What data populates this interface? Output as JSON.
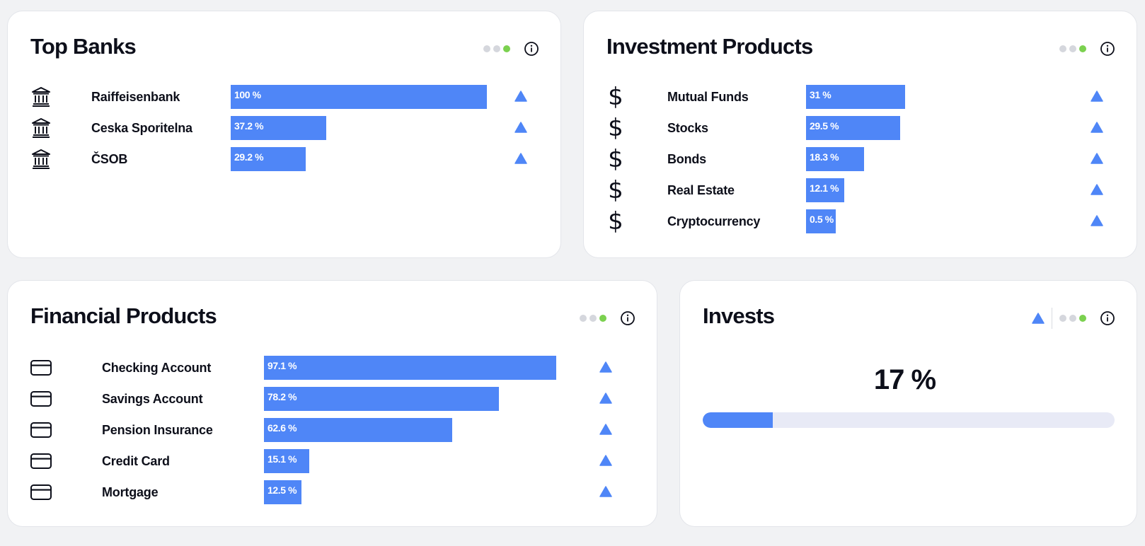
{
  "colors": {
    "bar": "#4f86f7",
    "accent_dot": "#7bd14f",
    "trend_up": "#4f86f7"
  },
  "top_banks": {
    "title": "Top Banks",
    "icon": "bank-icon",
    "rows": [
      {
        "label": "Raiffeisenbank",
        "percent": 100,
        "value_label": "100 %",
        "trend": "up"
      },
      {
        "label": "Ceska Sporitelna",
        "percent": 37.2,
        "value_label": "37.2 %",
        "trend": "up"
      },
      {
        "label": "ČSOB",
        "percent": 29.2,
        "value_label": "29.2 %",
        "trend": "up"
      }
    ]
  },
  "investment_products": {
    "title": "Investment Products",
    "icon": "dollar-icon",
    "icon_glyph": "$",
    "rows": [
      {
        "label": "Mutual Funds",
        "percent": 31,
        "value_label": "31 %",
        "trend": "up"
      },
      {
        "label": "Stocks",
        "percent": 29.5,
        "value_label": "29.5 %",
        "trend": "up"
      },
      {
        "label": "Bonds",
        "percent": 18.3,
        "value_label": "18.3 %",
        "trend": "up"
      },
      {
        "label": "Real Estate",
        "percent": 12.1,
        "value_label": "12.1 %",
        "trend": "up"
      },
      {
        "label": "Cryptocurrency",
        "percent": 0.5,
        "value_label": "0.5 %",
        "trend": "up"
      }
    ]
  },
  "financial_products": {
    "title": "Financial Products",
    "icon": "credit-card-icon",
    "rows": [
      {
        "label": "Checking Account",
        "percent": 97.1,
        "value_label": "97.1 %",
        "trend": "up"
      },
      {
        "label": "Savings Account",
        "percent": 78.2,
        "value_label": "78.2 %",
        "trend": "up"
      },
      {
        "label": "Pension Insurance",
        "percent": 62.6,
        "value_label": "62.6 %",
        "trend": "up"
      },
      {
        "label": "Credit Card",
        "percent": 15.1,
        "value_label": "15.1 %",
        "trend": "up"
      },
      {
        "label": "Mortgage",
        "percent": 12.5,
        "value_label": "12.5 %",
        "trend": "up"
      }
    ]
  },
  "invests": {
    "title": "Invests",
    "value_label": "17 %",
    "progress_percent": 17,
    "trend": "up"
  },
  "card_tools": {
    "pagination_dots": 3,
    "active_dot": 3,
    "info_icon": "info-icon"
  }
}
